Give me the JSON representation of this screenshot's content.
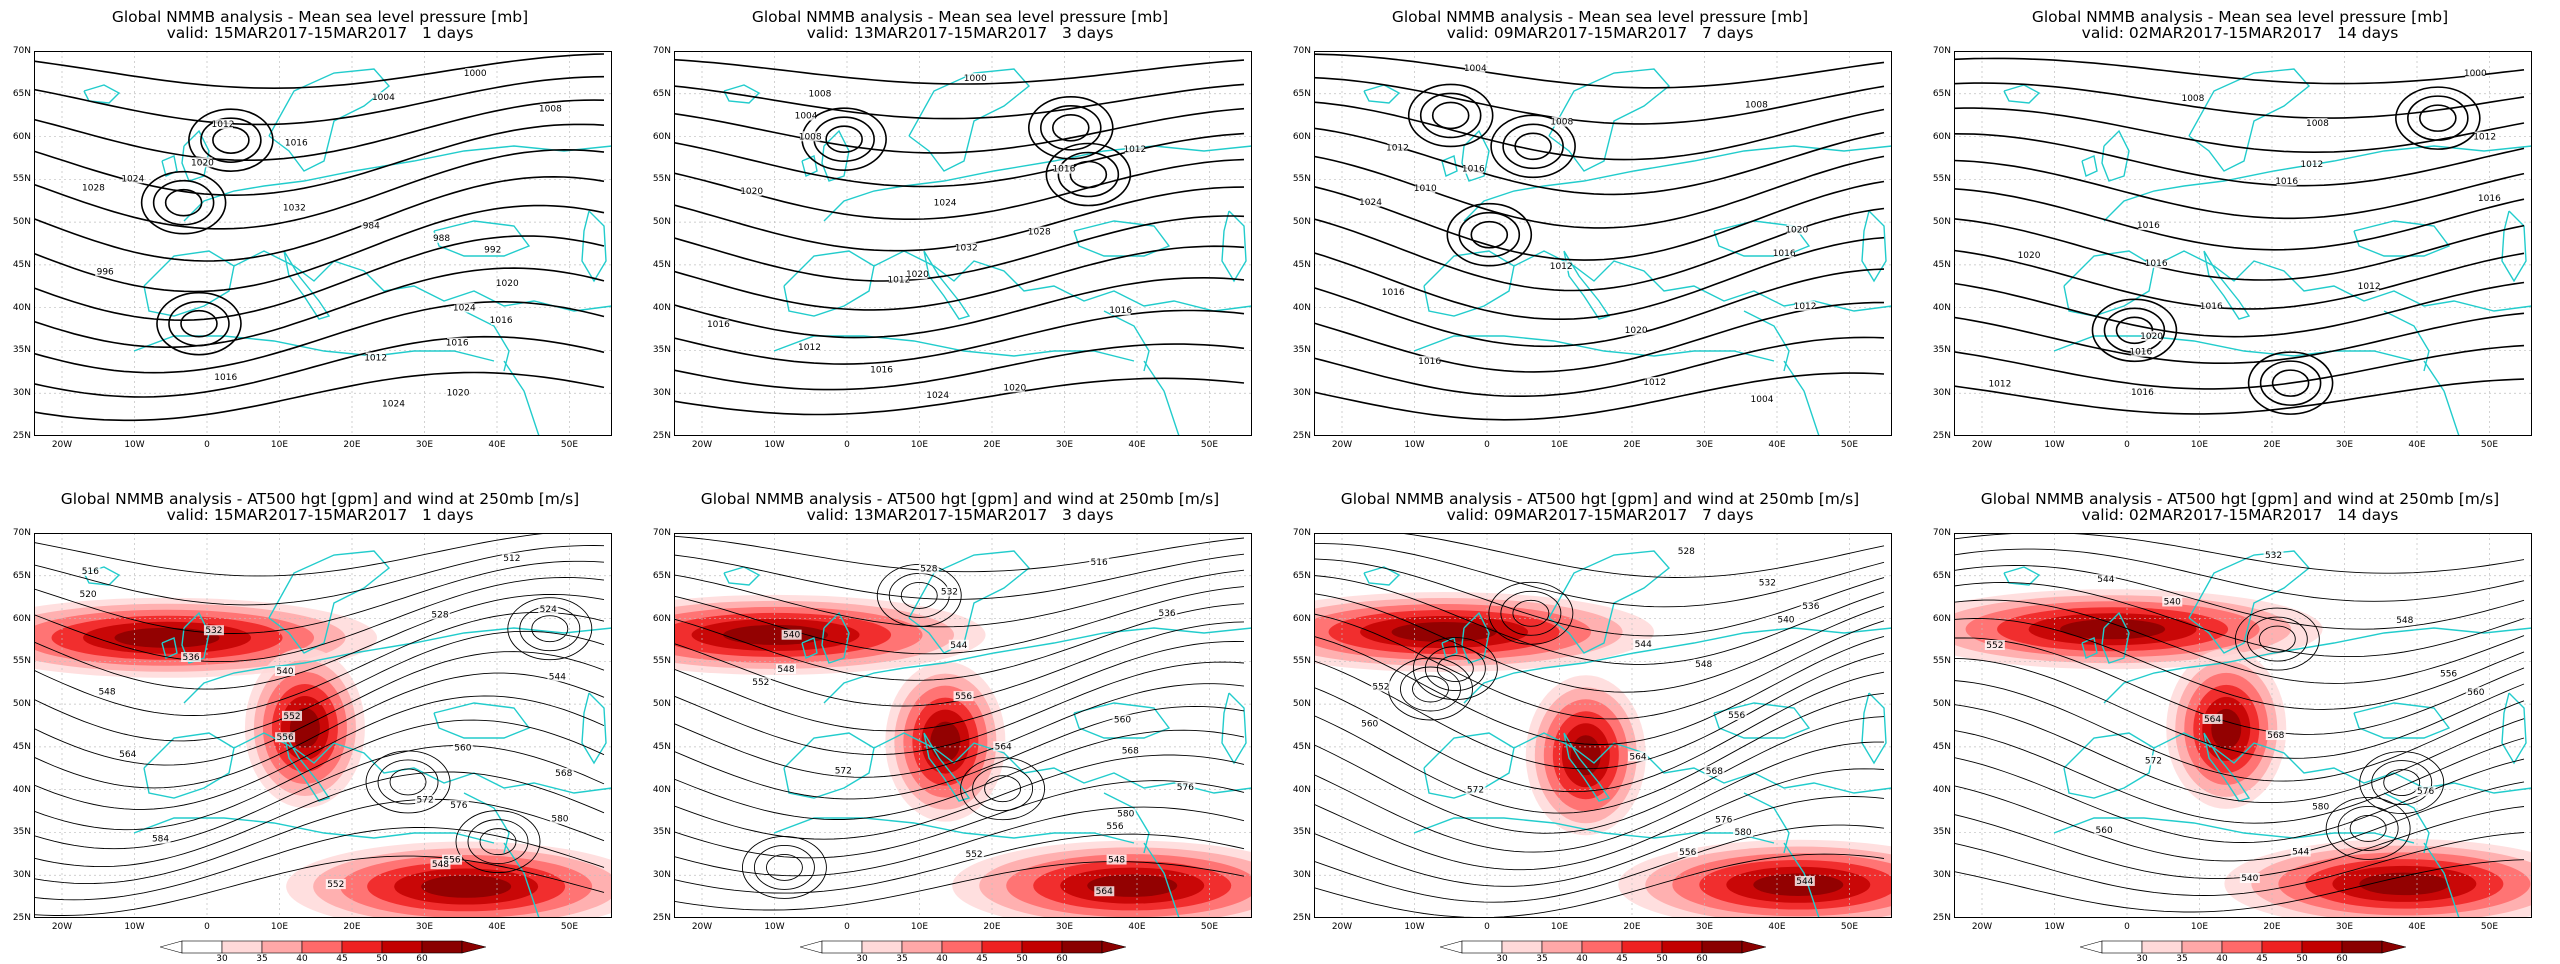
{
  "panels": [
    {
      "title": "Global NMMB analysis - Mean sea level pressure [mb]",
      "subtitle": "valid: 15MAR2017-15MAR2017   1 days",
      "kind": "mslp",
      "labels": [
        "1000",
        "1004",
        "1008",
        "1012",
        "1016",
        "1020",
        "1024",
        "1028",
        "1032",
        "984",
        "988",
        "992",
        "996",
        "1020",
        "1024",
        "1016",
        "1016",
        "1012",
        "1016",
        "1020",
        "1024"
      ]
    },
    {
      "title": "Global NMMB analysis - Mean sea level pressure [mb]",
      "subtitle": "valid: 13MAR2017-15MAR2017   3 days",
      "kind": "mslp",
      "labels": [
        "1000",
        "1008",
        "1004",
        "1008",
        "1012",
        "1016",
        "1020",
        "1024",
        "1028",
        "1032",
        "1020",
        "1012",
        "1016",
        "1016",
        "1012",
        "1016",
        "1020",
        "1024"
      ]
    },
    {
      "title": "Global NMMB analysis - Mean sea level pressure [mb]",
      "subtitle": "valid: 09MAR2017-15MAR2017   7 days",
      "kind": "mslp",
      "labels": [
        "1004",
        "1008",
        "1008",
        "1012",
        "1016",
        "1010",
        "1024",
        "1020",
        "1016",
        "1012",
        "1016",
        "1012",
        "1020",
        "1016",
        "1012",
        "1004"
      ]
    },
    {
      "title": "Global NMMB analysis - Mean sea level pressure [mb]",
      "subtitle": "valid: 02MAR2017-15MAR2017   14 days",
      "kind": "mslp",
      "labels": [
        "1000",
        "1008",
        "1008",
        "1012",
        "1012",
        "1016",
        "1016",
        "1016",
        "1020",
        "1016",
        "1012",
        "1016",
        "1020",
        "1016",
        "1012",
        "1016"
      ]
    },
    {
      "title": "Global NMMB analysis - AT500 hgt [gpm] and wind at 250mb [m/s]",
      "subtitle": "valid: 15MAR2017-15MAR2017   1 days",
      "kind": "z500",
      "labels": [
        "512",
        "516",
        "520",
        "524",
        "528",
        "532",
        "536",
        "540",
        "544",
        "548",
        "552",
        "556",
        "560",
        "564",
        "568",
        "572",
        "576",
        "580",
        "584",
        "556",
        "548",
        "552"
      ]
    },
    {
      "title": "Global NMMB analysis - AT500 hgt [gpm] and wind at 250mb [m/s]",
      "subtitle": "valid: 13MAR2017-15MAR2017   3 days",
      "kind": "z500",
      "labels": [
        "516",
        "528",
        "532",
        "536",
        "540",
        "544",
        "548",
        "552",
        "556",
        "560",
        "564",
        "568",
        "572",
        "576",
        "580",
        "556",
        "552",
        "548",
        "564"
      ]
    },
    {
      "title": "Global NMMB analysis - AT500 hgt [gpm] and wind at 250mb [m/s]",
      "subtitle": "valid: 09MAR2017-15MAR2017   7 days",
      "kind": "z500",
      "labels": [
        "528",
        "532",
        "536",
        "540",
        "544",
        "548",
        "552",
        "556",
        "560",
        "564",
        "568",
        "572",
        "576",
        "580",
        "556",
        "544"
      ]
    },
    {
      "title": "Global NMMB analysis - AT500 hgt [gpm] and wind at 250mb [m/s]",
      "subtitle": "valid: 02MAR2017-15MAR2017   14 days",
      "kind": "z500",
      "labels": [
        "532",
        "544",
        "540",
        "548",
        "552",
        "556",
        "560",
        "564",
        "568",
        "572",
        "576",
        "580",
        "560",
        "544",
        "540"
      ]
    }
  ],
  "lat_labels": [
    "70N",
    "65N",
    "60N",
    "55N",
    "50N",
    "45N",
    "40N",
    "35N",
    "30N",
    "25N"
  ],
  "lon_labels": [
    "20W",
    "10W",
    "0",
    "10E",
    "20E",
    "30E",
    "40E",
    "50E"
  ],
  "colorbar": {
    "ticks": [
      "30",
      "35",
      "40",
      "45",
      "50",
      "60"
    ],
    "colors": [
      "#ffffff",
      "#ffd9d9",
      "#ffa8a8",
      "#ff6a6a",
      "#ee2222",
      "#c20000",
      "#8a0000"
    ]
  },
  "colors": {
    "coast": "#22cccc",
    "contour": "#000000",
    "grid": "#bfbfbf"
  }
}
